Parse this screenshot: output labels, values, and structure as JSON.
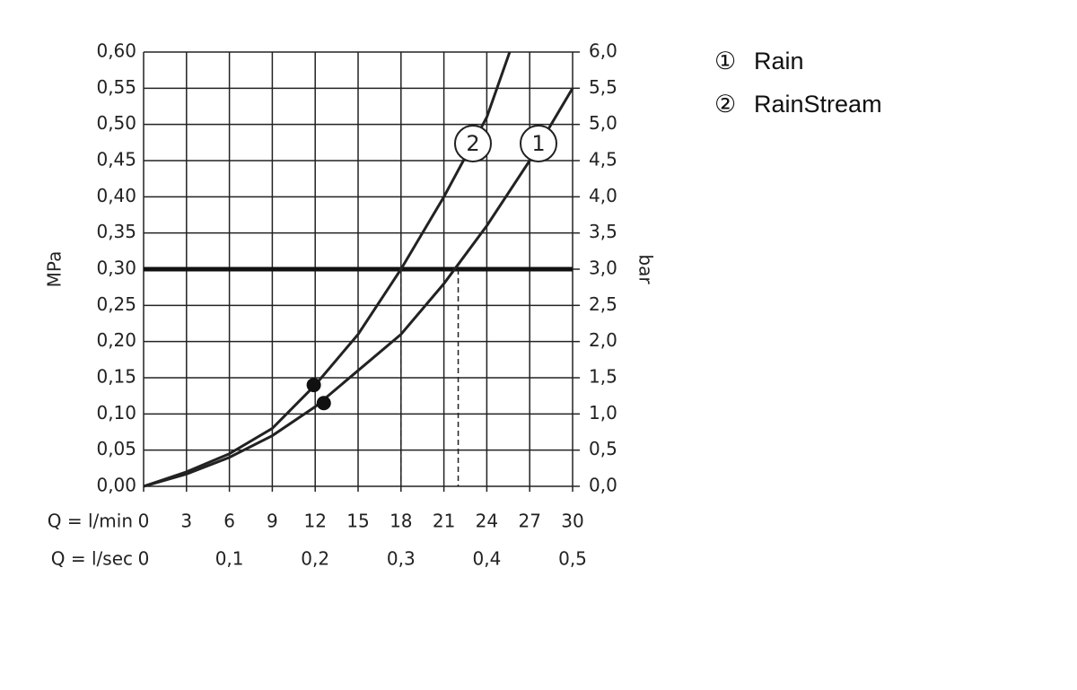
{
  "chart_data": {
    "type": "line",
    "xlabel": "Q = l/min",
    "x2label": "Q = l/sec",
    "ylabel": "MPa",
    "y2label": "bar",
    "xlim": [
      0,
      30
    ],
    "xticks": [
      0,
      3,
      6,
      9,
      12,
      15,
      18,
      21,
      24,
      27,
      30
    ],
    "x2lim": [
      0,
      0.5
    ],
    "x2ticks": [
      0,
      {
        "value": 0.1,
        "label": "0,1"
      },
      {
        "value": 0.2,
        "label": "0,2"
      },
      {
        "value": 0.3,
        "label": "0,3"
      },
      {
        "value": 0.4,
        "label": "0,4"
      },
      {
        "value": 0.5,
        "label": "0,5"
      }
    ],
    "ylim": [
      0,
      0.6
    ],
    "yticks": [
      {
        "value": 0,
        "label": "0,00"
      },
      {
        "value": 0.05,
        "label": "0,05"
      },
      {
        "value": 0.1,
        "label": "0,10"
      },
      {
        "value": 0.15,
        "label": "0,15"
      },
      {
        "value": 0.2,
        "label": "0,20"
      },
      {
        "value": 0.25,
        "label": "0,25"
      },
      {
        "value": 0.3,
        "label": "0,30"
      },
      {
        "value": 0.35,
        "label": "0,35"
      },
      {
        "value": 0.4,
        "label": "0,40"
      },
      {
        "value": 0.45,
        "label": "0,45"
      },
      {
        "value": 0.5,
        "label": "0,50"
      },
      {
        "value": 0.55,
        "label": "0,55"
      },
      {
        "value": 0.6,
        "label": "0,60"
      }
    ],
    "y2lim": [
      0,
      6
    ],
    "y2ticks": [
      {
        "value": 0,
        "label": "0,0"
      },
      {
        "value": 0.5,
        "label": "0,5"
      },
      {
        "value": 1,
        "label": "1,0"
      },
      {
        "value": 1.5,
        "label": "1,5"
      },
      {
        "value": 2,
        "label": "2,0"
      },
      {
        "value": 2.5,
        "label": "2,5"
      },
      {
        "value": 3,
        "label": "3,0"
      },
      {
        "value": 3.5,
        "label": "3,5"
      },
      {
        "value": 4,
        "label": "4,0"
      },
      {
        "value": 4.5,
        "label": "4,5"
      },
      {
        "value": 5,
        "label": "5,0"
      },
      {
        "value": 5.5,
        "label": "5,5"
      },
      {
        "value": 6,
        "label": "6,0"
      }
    ],
    "grid": true,
    "reference_y": 0.3,
    "reference_x": [
      18,
      22
    ],
    "series": [
      {
        "name": "Rain",
        "symbol": "①",
        "curve_label": "1",
        "color": "#222222",
        "x": [
          0,
          3,
          6,
          9,
          12,
          15,
          18,
          21,
          24,
          27,
          30
        ],
        "values": [
          0,
          0.017,
          0.04,
          0.07,
          0.11,
          0.16,
          0.21,
          0.28,
          0.36,
          0.45,
          0.55
        ],
        "marker": {
          "x": 12.6,
          "y": 0.115
        }
      },
      {
        "name": "RainStream",
        "symbol": "②",
        "curve_label": "2",
        "color": "#222222",
        "x": [
          0,
          3,
          6,
          9,
          12,
          15,
          18,
          21,
          24,
          25.6
        ],
        "values": [
          0,
          0.02,
          0.045,
          0.08,
          0.14,
          0.21,
          0.3,
          0.4,
          0.51,
          0.6
        ],
        "marker": {
          "x": 11.9,
          "y": 0.14
        }
      }
    ]
  }
}
